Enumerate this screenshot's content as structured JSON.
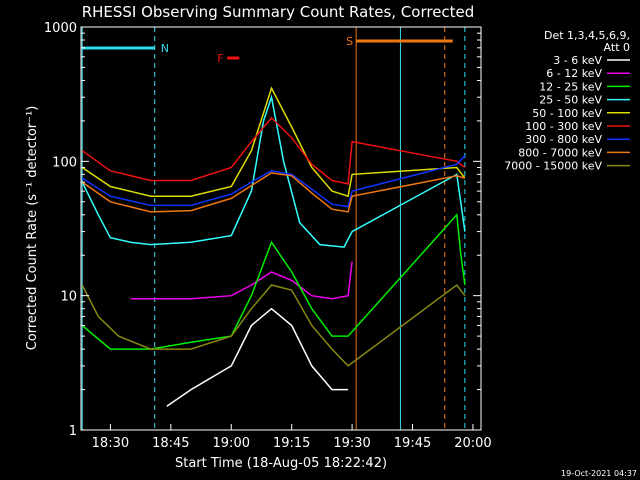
{
  "chart_data": {
    "type": "line",
    "title": "RHESSI Observing Summary Count Rates, Corrected",
    "xlabel": "Start Time (18-Aug-05 18:22:42)",
    "ylabel": "Corrected Count Rate (s⁻¹ detector⁻¹)",
    "y_scale": "log",
    "ylim": [
      1,
      1000
    ],
    "xlim": [
      "18:22:42",
      "20:02:00"
    ],
    "x_ticks": [
      "18:30",
      "18:45",
      "19:00",
      "19:15",
      "19:30",
      "19:45",
      "20:00"
    ],
    "y_ticks": [
      "1",
      "10",
      "100",
      "1000"
    ],
    "legend_header": [
      "Det 1,3,4,5,6,9,",
      "Att 0"
    ],
    "legend_position": "right",
    "footer": "19-Oct-2021 04:37",
    "flags": [
      {
        "label": "N",
        "color": "#33ddee",
        "start": "18:23",
        "end": "18:41"
      },
      {
        "label": "F",
        "color": "#ee1111",
        "start": "18:59",
        "end": "19:02"
      },
      {
        "label": "S",
        "color": "#ee7711",
        "start": "19:31",
        "end": "19:55"
      }
    ],
    "vlines": [
      {
        "time": "18:23",
        "color": "#33ddee",
        "style": "solid"
      },
      {
        "time": "18:41",
        "color": "#33ddee",
        "style": "dashed"
      },
      {
        "time": "19:31",
        "color": "#ee7711",
        "style": "solid"
      },
      {
        "time": "19:42",
        "color": "#33ddee",
        "style": "solid"
      },
      {
        "time": "19:53",
        "color": "#ee7711",
        "style": "dashed"
      },
      {
        "time": "19:58",
        "color": "#33ddee",
        "style": "dashed"
      }
    ],
    "series": [
      {
        "name": "3 - 6 keV",
        "color": "#ffffff",
        "x": [
          "18:44",
          "18:50",
          "19:00",
          "19:05",
          "19:10",
          "19:15",
          "19:20",
          "19:25",
          "19:29"
        ],
        "values": [
          1.5,
          2,
          3,
          6,
          8,
          6,
          3,
          2,
          2
        ]
      },
      {
        "name": "6 - 12 keV",
        "color": "#ee00ee",
        "x": [
          "18:35",
          "18:40",
          "18:50",
          "19:00",
          "19:05",
          "19:10",
          "19:15",
          "19:20",
          "19:25",
          "19:29",
          "19:30"
        ],
        "values": [
          9.5,
          9.5,
          9.5,
          10,
          12,
          15,
          13,
          10,
          9.5,
          10,
          18
        ]
      },
      {
        "name": "12 - 25 keV",
        "color": "#00ee00",
        "x": [
          "18:23",
          "18:30",
          "18:40",
          "18:50",
          "19:00",
          "19:05",
          "19:10",
          "19:15",
          "19:20",
          "19:25",
          "19:29",
          "19:56",
          "19:57",
          "19:58"
        ],
        "values": [
          6,
          4,
          4,
          4.5,
          5,
          10,
          25,
          15,
          8,
          5,
          5,
          40,
          20,
          12
        ]
      },
      {
        "name": "25 - 50 keV",
        "color": "#33ffff",
        "x": [
          "18:23",
          "18:27",
          "18:30",
          "18:35",
          "18:40",
          "18:50",
          "19:00",
          "19:05",
          "19:08",
          "19:10",
          "19:13",
          "19:17",
          "19:22",
          "19:28",
          "19:30",
          "19:56",
          "19:58"
        ],
        "values": [
          70,
          40,
          27,
          25,
          24,
          25,
          28,
          60,
          200,
          300,
          100,
          35,
          24,
          23,
          30,
          80,
          30
        ]
      },
      {
        "name": "50 - 100 keV",
        "color": "#dddd00",
        "x": [
          "18:23",
          "18:30",
          "18:40",
          "18:50",
          "19:00",
          "19:05",
          "19:10",
          "19:15",
          "19:20",
          "19:25",
          "19:29",
          "19:30",
          "19:56",
          "19:58"
        ],
        "values": [
          90,
          65,
          55,
          55,
          65,
          120,
          350,
          180,
          90,
          60,
          55,
          80,
          90,
          75
        ]
      },
      {
        "name": "100 - 300 keV",
        "color": "#ee1111",
        "x": [
          "18:23",
          "18:30",
          "18:40",
          "18:50",
          "19:00",
          "19:05",
          "19:10",
          "19:15",
          "19:20",
          "19:25",
          "19:29",
          "19:30",
          "19:56",
          "19:58"
        ],
        "values": [
          120,
          85,
          72,
          72,
          90,
          140,
          210,
          150,
          95,
          72,
          68,
          140,
          100,
          90
        ]
      },
      {
        "name": "300 - 800 keV",
        "color": "#1133ff",
        "x": [
          "18:23",
          "18:30",
          "18:40",
          "18:50",
          "19:00",
          "19:05",
          "19:10",
          "19:15",
          "19:20",
          "19:25",
          "19:29",
          "19:30",
          "19:56",
          "19:58"
        ],
        "values": [
          75,
          55,
          47,
          47,
          57,
          70,
          85,
          80,
          62,
          48,
          46,
          60,
          95,
          110
        ]
      },
      {
        "name": "800 - 7000 keV",
        "color": "#ee7711",
        "x": [
          "18:23",
          "18:30",
          "18:40",
          "18:50",
          "19:00",
          "19:05",
          "19:10",
          "19:15",
          "19:20",
          "19:25",
          "19:29",
          "19:30",
          "19:56",
          "19:58"
        ],
        "values": [
          70,
          50,
          42,
          43,
          53,
          66,
          82,
          78,
          58,
          44,
          42,
          55,
          78,
          75
        ]
      },
      {
        "name": "7000 - 15000 keV",
        "color": "#888811",
        "x": [
          "18:23",
          "18:27",
          "18:32",
          "18:40",
          "18:50",
          "19:00",
          "19:05",
          "19:10",
          "19:15",
          "19:20",
          "19:25",
          "19:29",
          "19:56",
          "19:58"
        ],
        "values": [
          12,
          7,
          5,
          4,
          4,
          5,
          8,
          12,
          11,
          6,
          4,
          3,
          12,
          10
        ]
      }
    ]
  }
}
